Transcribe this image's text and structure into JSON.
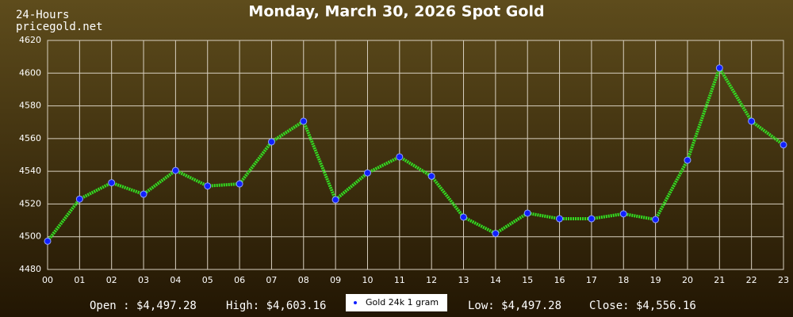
{
  "chart_data": {
    "type": "line",
    "title": "Monday, March 30, 2026 Spot Gold",
    "categories": [
      "00",
      "01",
      "02",
      "03",
      "04",
      "05",
      "06",
      "07",
      "08",
      "09",
      "10",
      "11",
      "12",
      "13",
      "14",
      "15",
      "16",
      "17",
      "18",
      "19",
      "20",
      "21",
      "22",
      "23"
    ],
    "series": [
      {
        "name": "Gold 24k 1 gram",
        "color": "#33dd22",
        "values": [
          4497.28,
          4523,
          4533,
          4526,
          4540.5,
          4531,
          4532.3,
          4558,
          4570.6,
          4522.6,
          4539,
          4548.8,
          4537,
          4512,
          4502,
          4514.4,
          4511,
          4511,
          4514,
          4510.5,
          4546.8,
          4603.16,
          4570.6,
          4556.16
        ]
      }
    ],
    "ylim": [
      4480,
      4620
    ],
    "yticks": [
      4480,
      4500,
      4520,
      4540,
      4560,
      4580,
      4600,
      4620
    ],
    "grid": true
  },
  "header": {
    "period": "24-Hours",
    "site": "pricegold.net"
  },
  "footer": {
    "open": "Open : $4,497.28",
    "high": "High: $4,603.16",
    "low": "Low: $4,497.28",
    "close": "Close: $4,556.16"
  }
}
